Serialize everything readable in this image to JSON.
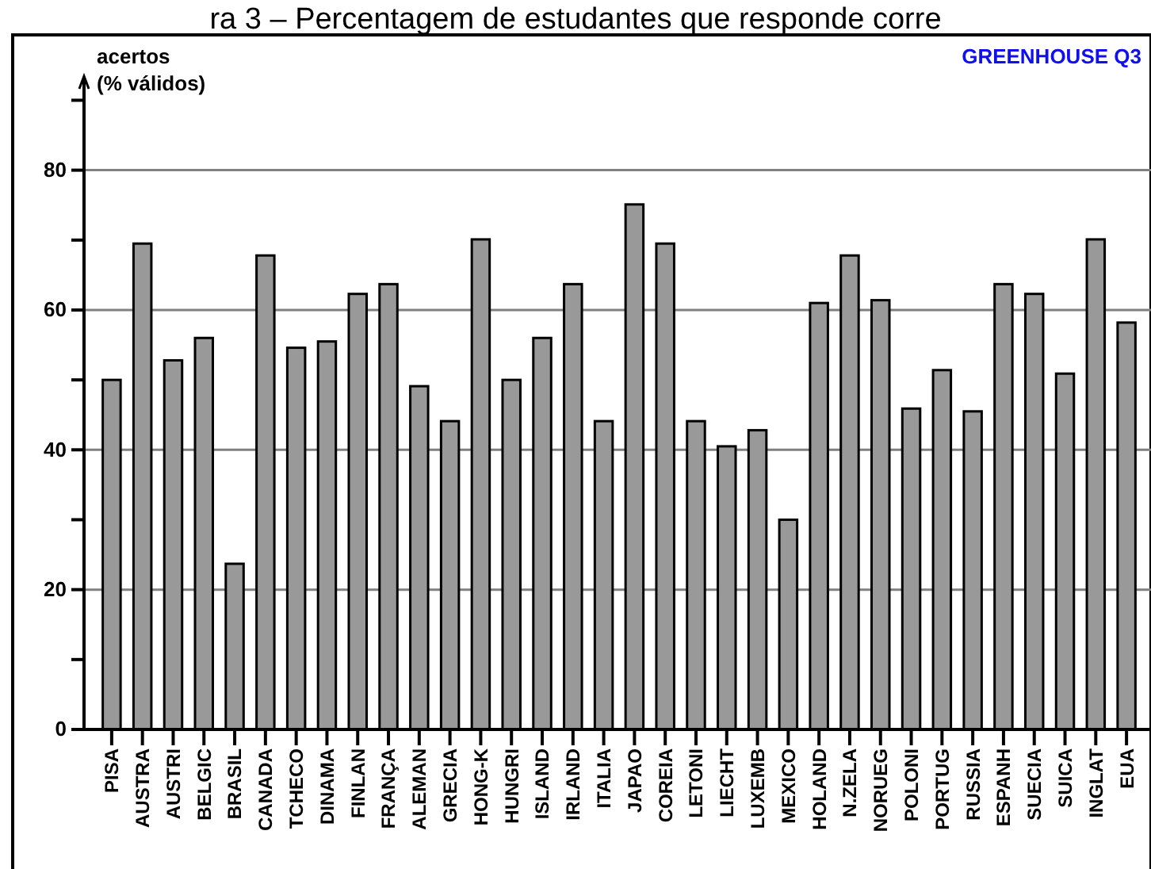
{
  "chart_data": {
    "type": "bar",
    "title": "ra 3 – Percentagem de estudantes que responde corre",
    "ylabel": "acertos\n(% válidos)",
    "annotations": [
      "GREENHOUSE Q3"
    ],
    "categories": [
      "PISA",
      "AUSTRA",
      "AUSTRI",
      "BELGIC",
      "BRASIL",
      "CANADA",
      "TCHECO",
      "DINAMA",
      "FINLAN",
      "FRANÇA",
      "ALEMAN",
      "GRECIA",
      "HONG-K",
      "HUNGRI",
      "ISLAND",
      "IRLAND",
      "ITALIA",
      "JAPAO",
      "COREIA",
      "LETONI",
      "LIECHT",
      "LUXEMB",
      "MEXICO",
      "HOLAND",
      "N.ZELA",
      "NORUEG",
      "POLONI",
      "PORTUG",
      "RUSSIA",
      "ESPANH",
      "SUECIA",
      "SUICA",
      "INGLAT",
      "EUA"
    ],
    "values": [
      50.0,
      69.5,
      52.8,
      56.0,
      23.7,
      67.8,
      54.6,
      55.5,
      62.3,
      63.7,
      49.1,
      44.1,
      70.1,
      50.0,
      56.0,
      63.7,
      44.1,
      75.1,
      69.5,
      44.1,
      40.5,
      42.8,
      30.0,
      61.0,
      67.8,
      61.4,
      45.9,
      51.4,
      45.5,
      63.7,
      62.3,
      50.9,
      70.1,
      58.2
    ],
    "color": "#999999",
    "ylim": [
      0,
      93
    ],
    "yticks": [
      0,
      {
        "value": 10,
        "label": null
      },
      20,
      {
        "value": 30,
        "label": null
      },
      40,
      {
        "value": 50,
        "label": null
      },
      60,
      {
        "value": 70,
        "label": null
      },
      80,
      {
        "value": 90,
        "label": null
      }
    ],
    "grid": "y"
  }
}
